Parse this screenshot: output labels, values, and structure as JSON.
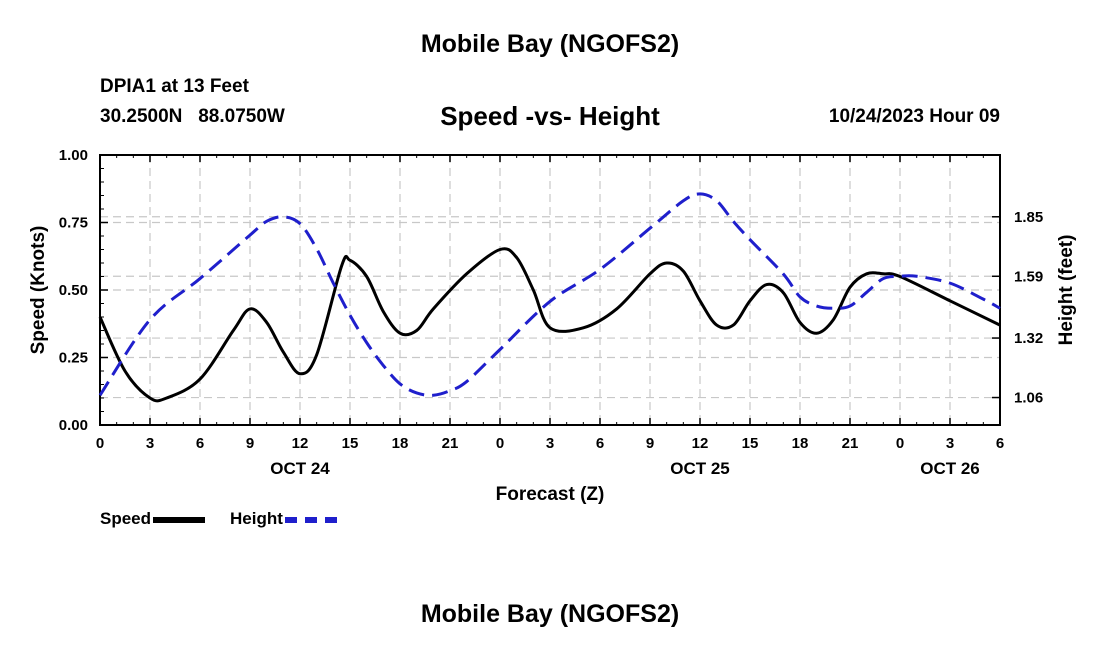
{
  "header": {
    "title": "Mobile Bay (NGOFS2)",
    "station": "DPIA1 at 13 Feet",
    "coordinates": "30.2500N   88.0750W",
    "subtitle": "Speed -vs- Height",
    "datetime": "10/24/2023 Hour 09"
  },
  "footer": {
    "title": "Mobile Bay (NGOFS2)"
  },
  "legend": {
    "speed_label": "Speed",
    "height_label": "Height",
    "speed_color": "#000000",
    "height_color": "#1f1fcc"
  },
  "chart_data": {
    "type": "line",
    "xlabel": "Forecast (Z)",
    "ylabel_left": "Speed (Knots)",
    "ylabel_right": "Height (feet)",
    "x_range_hours": [
      0,
      54
    ],
    "x_ticks": [
      {
        "hour": 0,
        "label": "0"
      },
      {
        "hour": 3,
        "label": "3"
      },
      {
        "hour": 6,
        "label": "6"
      },
      {
        "hour": 9,
        "label": "9"
      },
      {
        "hour": 12,
        "label": "12"
      },
      {
        "hour": 15,
        "label": "15"
      },
      {
        "hour": 18,
        "label": "18"
      },
      {
        "hour": 21,
        "label": "21"
      },
      {
        "hour": 24,
        "label": "0"
      },
      {
        "hour": 27,
        "label": "3"
      },
      {
        "hour": 30,
        "label": "6"
      },
      {
        "hour": 33,
        "label": "9"
      },
      {
        "hour": 36,
        "label": "12"
      },
      {
        "hour": 39,
        "label": "15"
      },
      {
        "hour": 42,
        "label": "18"
      },
      {
        "hour": 45,
        "label": "21"
      },
      {
        "hour": 48,
        "label": "0"
      },
      {
        "hour": 51,
        "label": "3"
      },
      {
        "hour": 54,
        "label": "6"
      }
    ],
    "date_labels": [
      {
        "hour": 12,
        "label": "OCT 24"
      },
      {
        "hour": 36,
        "label": "OCT 25"
      },
      {
        "hour": 51,
        "label": "OCT 26"
      }
    ],
    "ylim_left": [
      0,
      1
    ],
    "y_ticks_left": [
      {
        "value": 0.0,
        "label": "0.00"
      },
      {
        "value": 0.25,
        "label": "0.25"
      },
      {
        "value": 0.5,
        "label": "0.50"
      },
      {
        "value": 0.75,
        "label": "0.75"
      },
      {
        "value": 1.0,
        "label": "1.00"
      }
    ],
    "ylim_right": [
      0.94,
      2.12
    ],
    "y_ticks_right": [
      {
        "value": 1.06,
        "label": "1.06"
      },
      {
        "value": 1.32,
        "label": "1.32"
      },
      {
        "value": 1.59,
        "label": "1.59"
      },
      {
        "value": 1.85,
        "label": "1.85"
      }
    ],
    "series": [
      {
        "name": "Speed",
        "axis": "left",
        "style": "solid",
        "color": "#000000",
        "x": [
          0,
          1.5,
          3,
          4,
          6,
          8,
          9,
          10,
          11,
          12,
          13,
          14.5,
          15,
          16,
          17,
          18,
          19,
          20,
          22,
          24,
          25,
          26,
          27,
          29,
          31,
          33,
          34,
          35,
          36,
          37,
          38,
          39,
          40,
          41,
          42,
          43,
          44,
          45,
          46,
          47,
          48,
          51,
          54
        ],
        "values": [
          0.4,
          0.2,
          0.1,
          0.1,
          0.17,
          0.35,
          0.43,
          0.38,
          0.27,
          0.19,
          0.26,
          0.59,
          0.61,
          0.55,
          0.42,
          0.34,
          0.35,
          0.43,
          0.56,
          0.65,
          0.62,
          0.5,
          0.36,
          0.36,
          0.43,
          0.56,
          0.6,
          0.57,
          0.46,
          0.37,
          0.37,
          0.46,
          0.52,
          0.49,
          0.38,
          0.34,
          0.39,
          0.51,
          0.56,
          0.56,
          0.55,
          0.46,
          0.37
        ]
      },
      {
        "name": "Height",
        "axis": "right",
        "style": "dashed",
        "color": "#1f1fcc",
        "x": [
          0,
          3,
          6,
          9,
          10,
          11,
          12,
          13,
          14,
          15,
          16,
          17,
          18,
          19,
          20,
          21,
          22,
          24,
          27,
          30,
          33,
          35,
          36,
          37,
          38,
          39,
          41,
          42,
          43,
          44,
          45,
          46,
          47,
          48,
          49,
          51,
          53,
          54
        ],
        "values": [
          1.07,
          1.4,
          1.58,
          1.77,
          1.83,
          1.85,
          1.82,
          1.71,
          1.56,
          1.42,
          1.3,
          1.2,
          1.12,
          1.08,
          1.07,
          1.09,
          1.13,
          1.27,
          1.48,
          1.62,
          1.8,
          1.92,
          1.95,
          1.92,
          1.83,
          1.75,
          1.6,
          1.5,
          1.46,
          1.45,
          1.46,
          1.52,
          1.58,
          1.59,
          1.59,
          1.56,
          1.49,
          1.45
        ]
      }
    ]
  }
}
